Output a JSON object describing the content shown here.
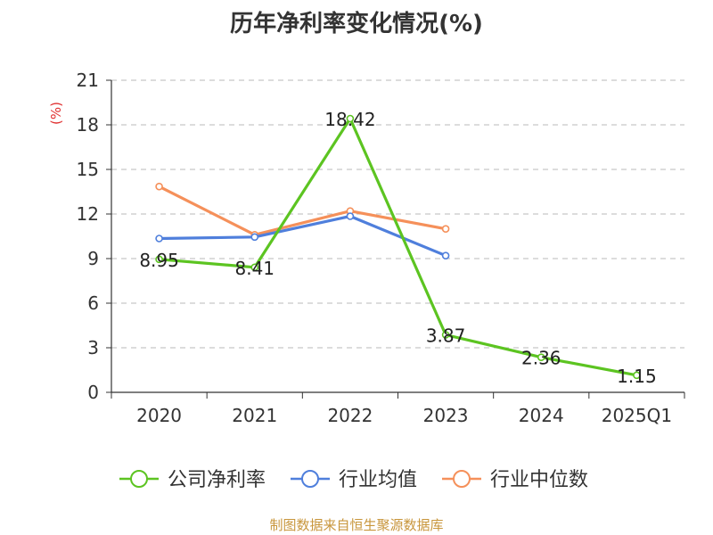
{
  "chart_data": {
    "type": "line",
    "title": "历年净利率变化情况(%)",
    "ylabel": "(%)",
    "xlabel": "",
    "categories": [
      "2020",
      "2021",
      "2022",
      "2023",
      "2024",
      "2025Q1"
    ],
    "ylim": [
      0,
      21
    ],
    "yticks": [
      0,
      3,
      6,
      9,
      12,
      15,
      18,
      21
    ],
    "grid": true,
    "legend_position": "bottom",
    "series": [
      {
        "name": "公司净利率",
        "color": "#5cc421",
        "values": [
          8.95,
          8.41,
          18.42,
          3.87,
          2.36,
          1.15
        ],
        "labels": [
          "8.95",
          "8.41",
          "18.42",
          "3.87",
          "2.36",
          "1.15"
        ]
      },
      {
        "name": "行业均值",
        "color": "#4f7fdc",
        "values": [
          10.35,
          10.45,
          11.85,
          9.2,
          null,
          null
        ]
      },
      {
        "name": "行业中位数",
        "color": "#f5905a",
        "values": [
          13.85,
          10.6,
          12.2,
          11.0,
          null,
          null
        ]
      }
    ]
  },
  "footer": {
    "source": "制图数据来自恒生聚源数据库"
  }
}
